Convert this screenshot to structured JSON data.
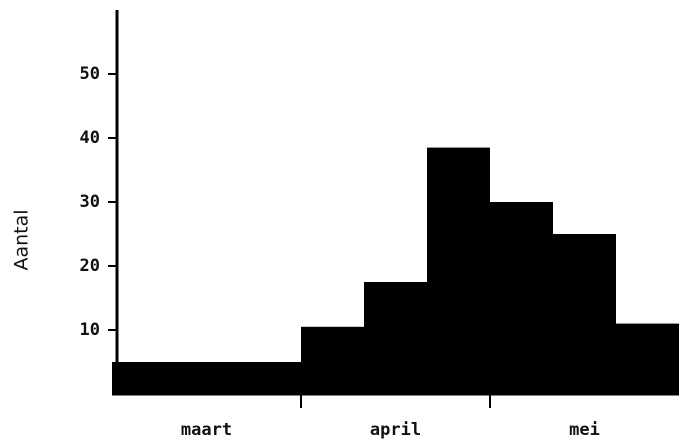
{
  "chart_data": {
    "type": "histogram",
    "ylabel": "Aantal",
    "bins": [
      0,
      3,
      4,
      5,
      6,
      7,
      8,
      9
    ],
    "values": [
      5,
      10.5,
      17.5,
      38.5,
      30,
      25,
      11
    ],
    "color": "#000000",
    "categories": [
      "maart",
      "april",
      "mei"
    ],
    "xlim": [
      0,
      9
    ],
    "xticks": [
      3,
      6
    ],
    "ylim": [
      0,
      60
    ],
    "yticks": [
      10,
      20,
      30,
      40,
      50
    ],
    "grid": false
  }
}
